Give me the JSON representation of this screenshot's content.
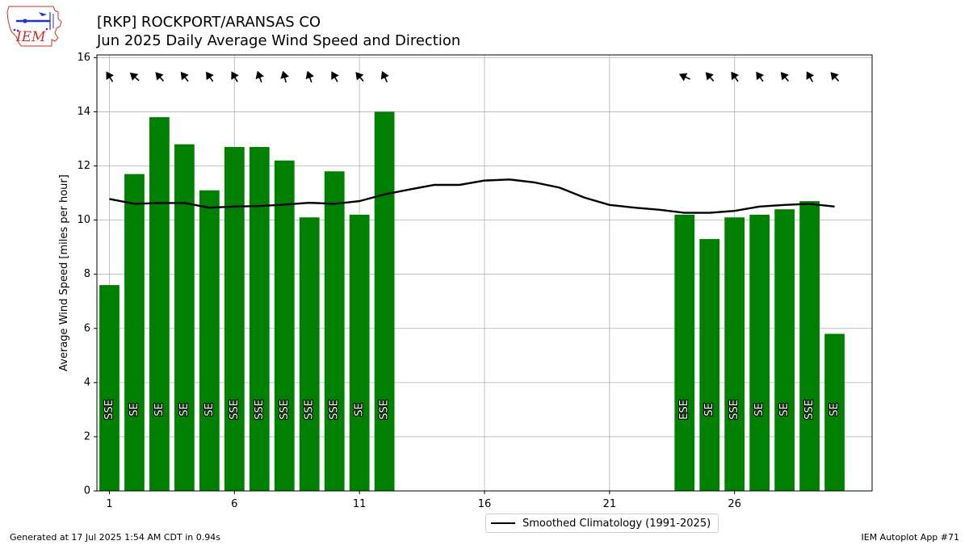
{
  "logo": {
    "text": "IEM"
  },
  "header": {
    "title": "[RKP] ROCKPORT/ARANSAS CO",
    "subtitle": "Jun 2025 Daily Average Wind Speed and Direction"
  },
  "footer": {
    "generated": "Generated at 17 Jul 2025 1:54 AM CDT in 0.94s",
    "app": "IEM Autoplot App #71"
  },
  "colors": {
    "bar": "#008000",
    "climo": "#000000",
    "grid": "#b0b0b0"
  },
  "chart_data": {
    "type": "bar",
    "ylabel": "Average Wind Speed [miles per hour]",
    "xlabel": "",
    "xlim": [
      0.5,
      31.5
    ],
    "ylim": [
      0,
      16.1
    ],
    "grid": true,
    "legend_position": "bottom-center",
    "xticks": [
      1,
      6,
      11,
      16,
      21,
      26
    ],
    "yticks": [
      0,
      2,
      4,
      6,
      8,
      10,
      12,
      14,
      16
    ],
    "days": [
      {
        "day": 1,
        "speed": 7.6,
        "dir": "SSE",
        "dir_deg": 148
      },
      {
        "day": 2,
        "speed": 11.7,
        "dir": "SE",
        "dir_deg": 132
      },
      {
        "day": 3,
        "speed": 13.8,
        "dir": "SE",
        "dir_deg": 138
      },
      {
        "day": 4,
        "speed": 12.8,
        "dir": "SE",
        "dir_deg": 142
      },
      {
        "day": 5,
        "speed": 11.1,
        "dir": "SE",
        "dir_deg": 145
      },
      {
        "day": 6,
        "speed": 12.7,
        "dir": "SSE",
        "dir_deg": 150
      },
      {
        "day": 7,
        "speed": 12.7,
        "dir": "SSE",
        "dir_deg": 160
      },
      {
        "day": 8,
        "speed": 12.2,
        "dir": "SSE",
        "dir_deg": 165
      },
      {
        "day": 9,
        "speed": 10.1,
        "dir": "SSE",
        "dir_deg": 160
      },
      {
        "day": 10,
        "speed": 11.8,
        "dir": "SSE",
        "dir_deg": 150
      },
      {
        "day": 11,
        "speed": 10.2,
        "dir": "SE",
        "dir_deg": 140
      },
      {
        "day": 12,
        "speed": 14.0,
        "dir": "SSE",
        "dir_deg": 155
      },
      {
        "day": 24,
        "speed": 10.2,
        "dir": "ESE",
        "dir_deg": 115
      },
      {
        "day": 25,
        "speed": 9.3,
        "dir": "SE",
        "dir_deg": 138
      },
      {
        "day": 26,
        "speed": 10.1,
        "dir": "SSE",
        "dir_deg": 145
      },
      {
        "day": 27,
        "speed": 10.2,
        "dir": "SE",
        "dir_deg": 145
      },
      {
        "day": 28,
        "speed": 10.4,
        "dir": "SE",
        "dir_deg": 140
      },
      {
        "day": 29,
        "speed": 10.7,
        "dir": "SSE",
        "dir_deg": 150
      },
      {
        "day": 30,
        "speed": 5.8,
        "dir": "SE",
        "dir_deg": 138
      }
    ],
    "climatology": {
      "name": "Smoothed Climatology (1991-2025)",
      "x": [
        1,
        2,
        3,
        4,
        5,
        6,
        7,
        8,
        9,
        10,
        11,
        12,
        13,
        14,
        15,
        16,
        17,
        18,
        19,
        20,
        21,
        22,
        23,
        24,
        25,
        26,
        27,
        28,
        29,
        30
      ],
      "y": [
        10.78,
        10.6,
        10.63,
        10.63,
        10.46,
        10.5,
        10.52,
        10.57,
        10.64,
        10.6,
        10.7,
        10.95,
        11.13,
        11.3,
        11.3,
        11.46,
        11.5,
        11.39,
        11.2,
        10.83,
        10.56,
        10.46,
        10.38,
        10.27,
        10.27,
        10.34,
        10.5,
        10.56,
        10.6,
        10.5
      ]
    }
  }
}
